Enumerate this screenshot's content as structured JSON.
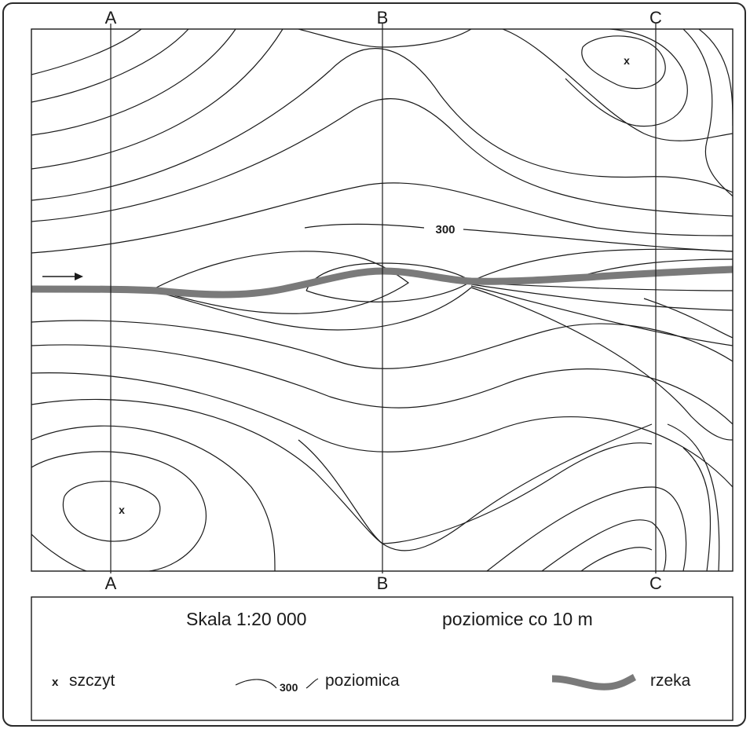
{
  "profiles": {
    "a_top": "A",
    "b_top": "B",
    "c_top": "C",
    "a_bottom": "A",
    "b_bottom": "B",
    "c_bottom": "C"
  },
  "contour_label": "300",
  "legend": {
    "scale": "Skala 1:20 000",
    "interval": "poziomice co 10 m",
    "peak_symbol": "x",
    "peak_label": "szczyt",
    "contour_sample_value": "300",
    "contour_label": "poziomica",
    "river_label": "rzeka"
  },
  "peaks": {
    "top_right": "x",
    "bottom_left": "x"
  },
  "colors": {
    "line": "#1a1a1a",
    "river": "#7a7a7a",
    "frame": "#2a2a2a"
  },
  "icons": {
    "flow_arrow": "arrow-right-icon"
  }
}
